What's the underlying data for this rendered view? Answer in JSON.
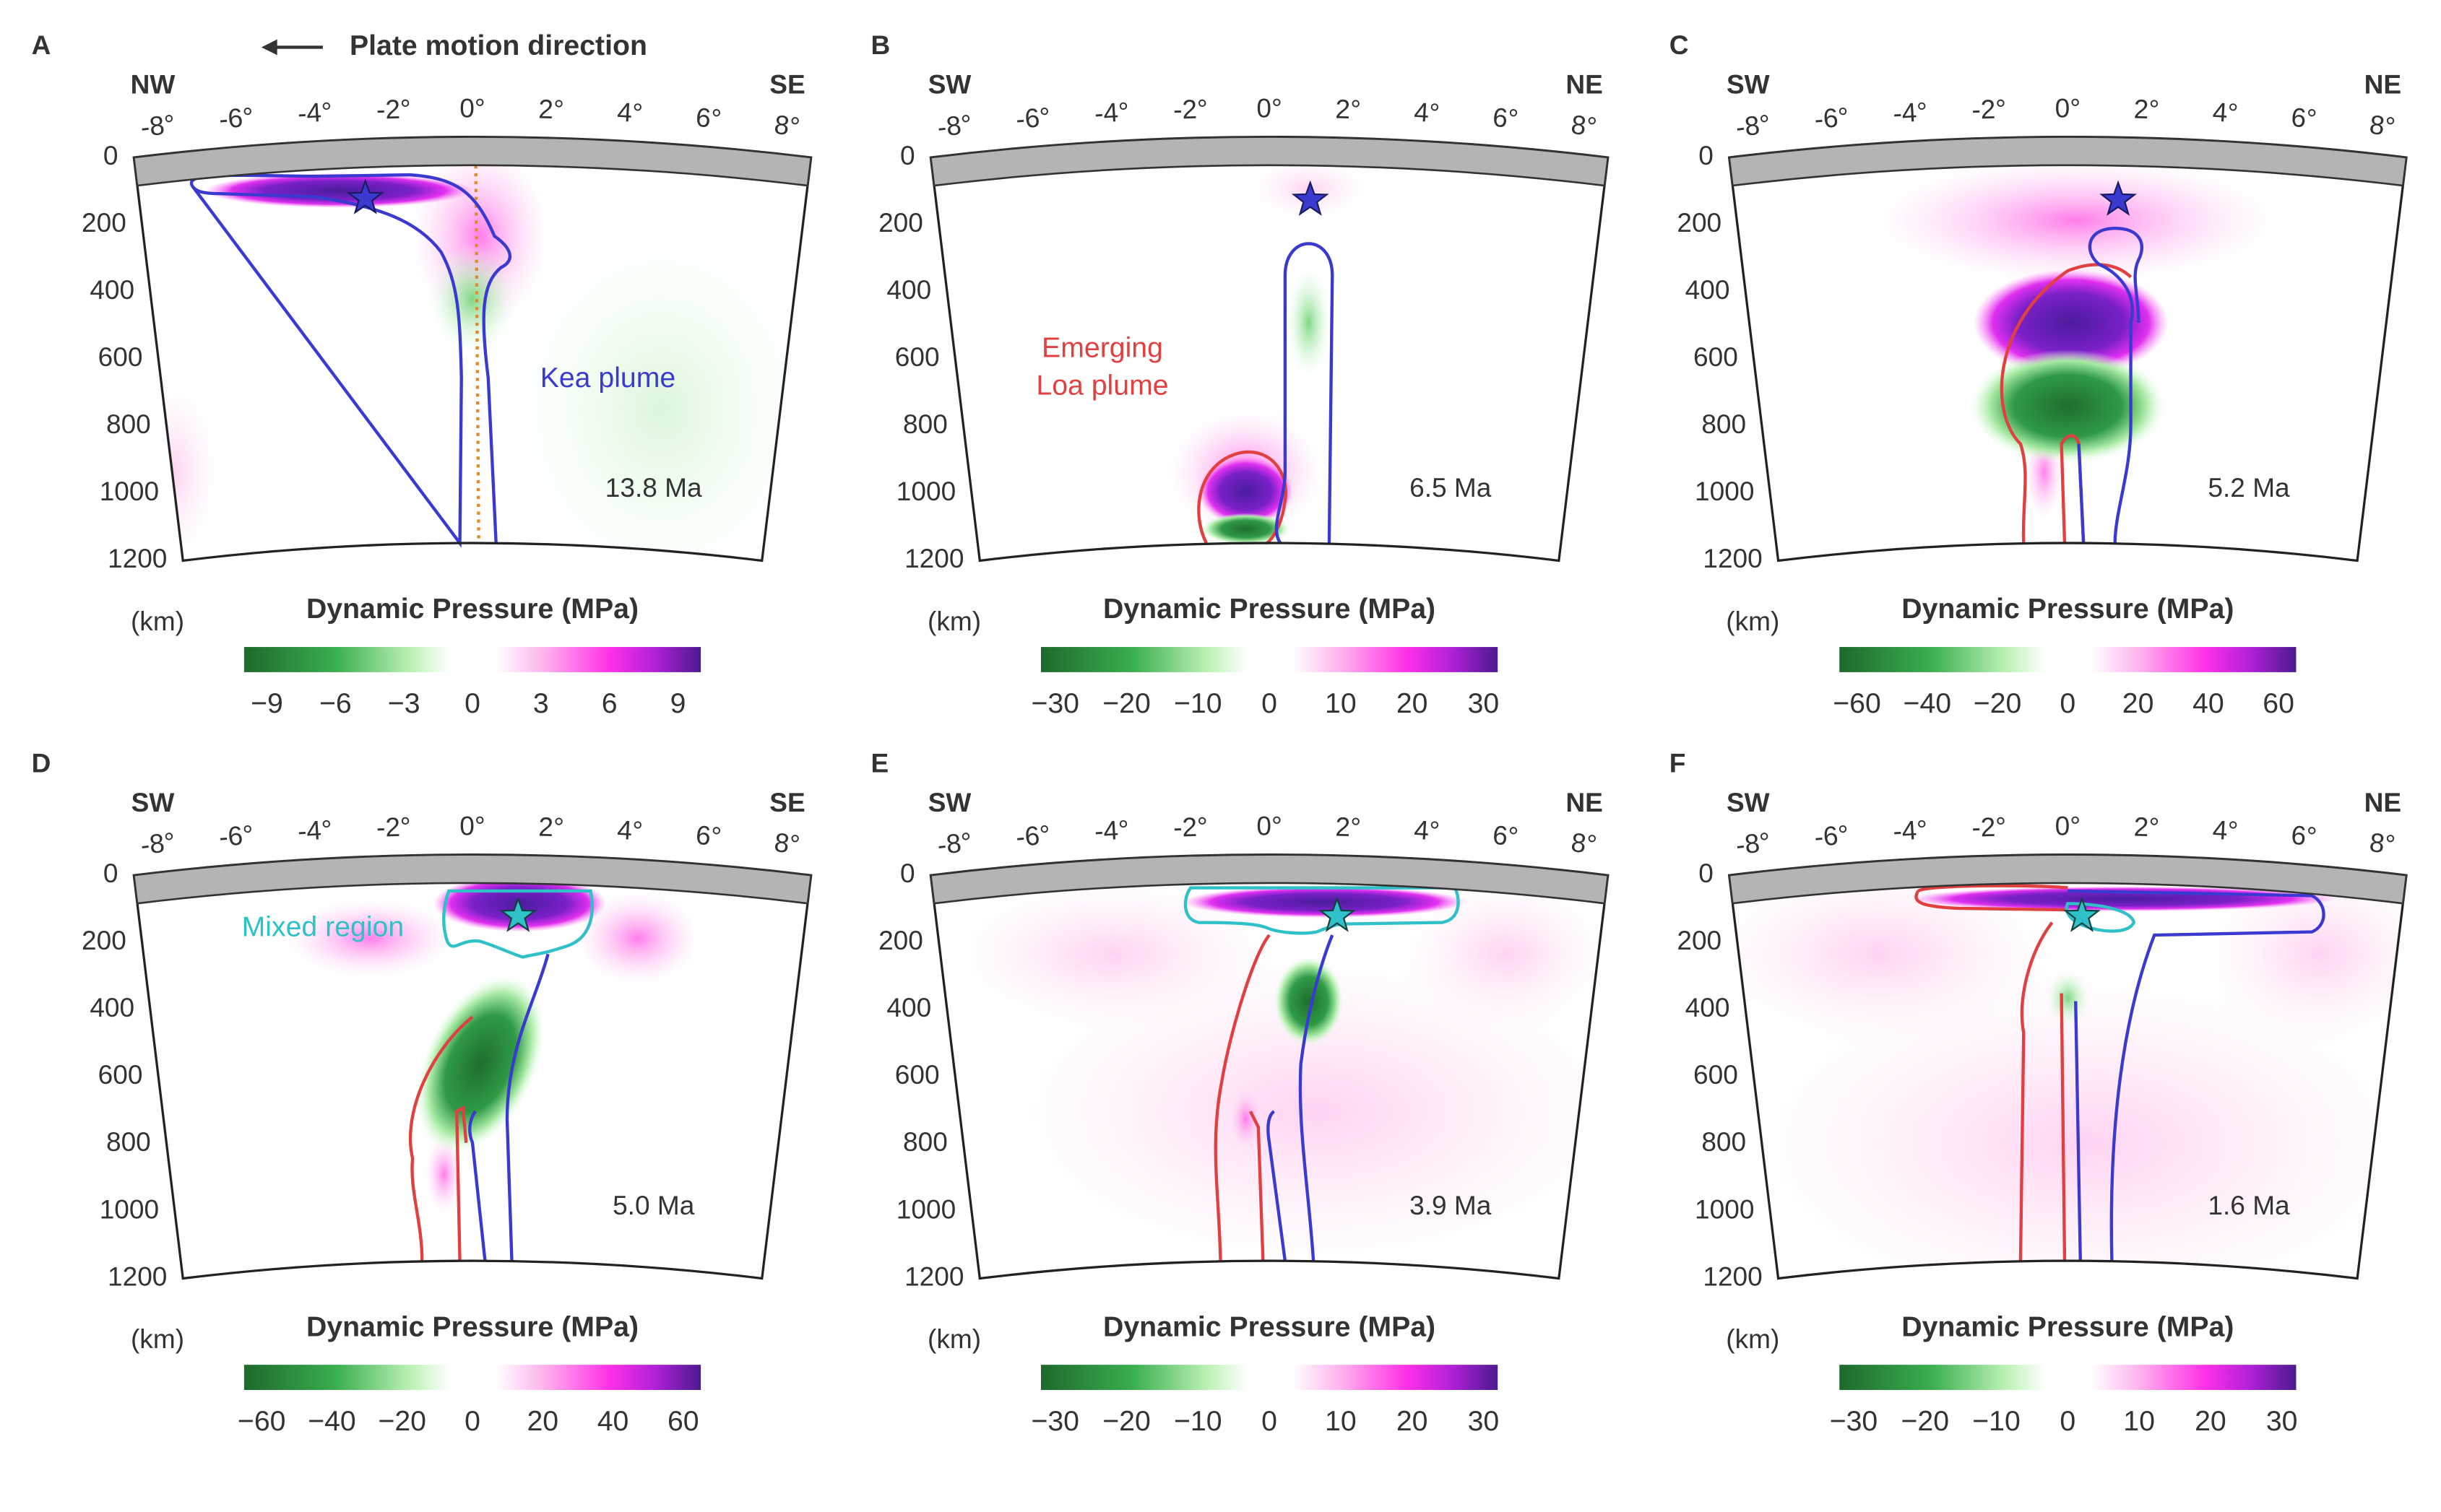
{
  "chart_data": [
    {
      "type": "cross-section",
      "label": "A",
      "dir_left": "NW",
      "dir_right": "SE",
      "time": "13.8 Ma",
      "notes": [
        "Plate motion direction",
        "Kea plume"
      ],
      "xlim": [
        -8.7,
        8.7
      ],
      "xticks": [
        {
          "value": -8,
          "label": "-8°"
        },
        {
          "value": -6,
          "label": "-6°"
        },
        {
          "value": -4,
          "label": "-4°"
        },
        {
          "value": -2,
          "label": "-2°"
        },
        {
          "value": 0,
          "label": "0°"
        },
        {
          "value": 2,
          "label": "2°"
        },
        {
          "value": 4,
          "label": "4°"
        },
        {
          "value": 6,
          "label": "6°"
        },
        {
          "value": 8,
          "label": "8°"
        }
      ],
      "ylim": [
        0,
        1200
      ],
      "yticks": [
        0,
        200,
        400,
        600,
        800,
        1000,
        1200
      ],
      "ylabel": "(km)",
      "colorbar": {
        "title": "Dynamic Pressure (MPa)",
        "lim": [
          -10,
          10
        ],
        "ticks": [
          {
            "value": -9,
            "label": "−9"
          },
          {
            "value": -6,
            "label": "−6"
          },
          {
            "value": -3,
            "label": "−3"
          },
          0,
          3,
          6,
          9
        ]
      }
    },
    {
      "type": "cross-section",
      "label": "B",
      "dir_left": "SW",
      "dir_right": "NE",
      "time": "6.5 Ma",
      "notes": [
        "Emerging",
        "Loa plume"
      ],
      "xlim": [
        -8.7,
        8.7
      ],
      "xticks": [
        {
          "value": -8,
          "label": "-8°"
        },
        {
          "value": -6,
          "label": "-6°"
        },
        {
          "value": -4,
          "label": "-4°"
        },
        {
          "value": -2,
          "label": "-2°"
        },
        {
          "value": 0,
          "label": "0°"
        },
        {
          "value": 2,
          "label": "2°"
        },
        {
          "value": 4,
          "label": "4°"
        },
        {
          "value": 6,
          "label": "6°"
        },
        {
          "value": 8,
          "label": "8°"
        }
      ],
      "ylim": [
        0,
        1200
      ],
      "yticks": [
        0,
        200,
        400,
        600,
        800,
        1000,
        1200
      ],
      "ylabel": "(km)",
      "colorbar": {
        "title": "Dynamic Pressure (MPa)",
        "lim": [
          -32,
          32
        ],
        "ticks": [
          {
            "value": -30,
            "label": "−30"
          },
          {
            "value": -20,
            "label": "−20"
          },
          {
            "value": -10,
            "label": "−10"
          },
          0,
          10,
          20,
          30
        ]
      }
    },
    {
      "type": "cross-section",
      "label": "C",
      "dir_left": "SW",
      "dir_right": "NE",
      "time": "5.2 Ma",
      "notes": [],
      "xlim": [
        -8.7,
        8.7
      ],
      "xticks": [
        {
          "value": -8,
          "label": "-8°"
        },
        {
          "value": -6,
          "label": "-6°"
        },
        {
          "value": -4,
          "label": "-4°"
        },
        {
          "value": -2,
          "label": "-2°"
        },
        {
          "value": 0,
          "label": "0°"
        },
        {
          "value": 2,
          "label": "2°"
        },
        {
          "value": 4,
          "label": "4°"
        },
        {
          "value": 6,
          "label": "6°"
        },
        {
          "value": 8,
          "label": "8°"
        }
      ],
      "ylim": [
        0,
        1200
      ],
      "yticks": [
        0,
        200,
        400,
        600,
        800,
        1000,
        1200
      ],
      "ylabel": "(km)",
      "colorbar": {
        "title": "Dynamic Pressure (MPa)",
        "lim": [
          -65,
          65
        ],
        "ticks": [
          {
            "value": -60,
            "label": "−60"
          },
          {
            "value": -40,
            "label": "−40"
          },
          {
            "value": -20,
            "label": "−20"
          },
          0,
          20,
          40,
          60
        ]
      }
    },
    {
      "type": "cross-section",
      "label": "D",
      "dir_left": "SW",
      "dir_right": "SE",
      "time": "5.0 Ma",
      "notes": [
        "Mixed region"
      ],
      "xlim": [
        -8.7,
        8.7
      ],
      "xticks": [
        {
          "value": -8,
          "label": "-8°"
        },
        {
          "value": -6,
          "label": "-6°"
        },
        {
          "value": -4,
          "label": "-4°"
        },
        {
          "value": -2,
          "label": "-2°"
        },
        {
          "value": 0,
          "label": "0°"
        },
        {
          "value": 2,
          "label": "2°"
        },
        {
          "value": 4,
          "label": "4°"
        },
        {
          "value": 6,
          "label": "6°"
        },
        {
          "value": 8,
          "label": "8°"
        }
      ],
      "ylim": [
        0,
        1200
      ],
      "yticks": [
        0,
        200,
        400,
        600,
        800,
        1000,
        1200
      ],
      "ylabel": "(km)",
      "colorbar": {
        "title": "Dynamic Pressure (MPa)",
        "lim": [
          -65,
          65
        ],
        "ticks": [
          {
            "value": -60,
            "label": "−60"
          },
          {
            "value": -40,
            "label": "−40"
          },
          {
            "value": -20,
            "label": "−20"
          },
          0,
          20,
          40,
          60
        ]
      }
    },
    {
      "type": "cross-section",
      "label": "E",
      "dir_left": "SW",
      "dir_right": "NE",
      "time": "3.9 Ma",
      "notes": [],
      "xlim": [
        -8.7,
        8.7
      ],
      "xticks": [
        {
          "value": -8,
          "label": "-8°"
        },
        {
          "value": -6,
          "label": "-6°"
        },
        {
          "value": -4,
          "label": "-4°"
        },
        {
          "value": -2,
          "label": "-2°"
        },
        {
          "value": 0,
          "label": "0°"
        },
        {
          "value": 2,
          "label": "2°"
        },
        {
          "value": 4,
          "label": "4°"
        },
        {
          "value": 6,
          "label": "6°"
        },
        {
          "value": 8,
          "label": "8°"
        }
      ],
      "ylim": [
        0,
        1200
      ],
      "yticks": [
        0,
        200,
        400,
        600,
        800,
        1000,
        1200
      ],
      "ylabel": "(km)",
      "colorbar": {
        "title": "Dynamic Pressure (MPa)",
        "lim": [
          -32,
          32
        ],
        "ticks": [
          {
            "value": -30,
            "label": "−30"
          },
          {
            "value": -20,
            "label": "−20"
          },
          {
            "value": -10,
            "label": "−10"
          },
          0,
          10,
          20,
          30
        ]
      }
    },
    {
      "type": "cross-section",
      "label": "F",
      "dir_left": "SW",
      "dir_right": "NE",
      "time": "1.6 Ma",
      "notes": [],
      "xlim": [
        -8.7,
        8.7
      ],
      "xticks": [
        {
          "value": -8,
          "label": "-8°"
        },
        {
          "value": -6,
          "label": "-6°"
        },
        {
          "value": -4,
          "label": "-4°"
        },
        {
          "value": -2,
          "label": "-2°"
        },
        {
          "value": 0,
          "label": "0°"
        },
        {
          "value": 2,
          "label": "2°"
        },
        {
          "value": 4,
          "label": "4°"
        },
        {
          "value": 6,
          "label": "6°"
        },
        {
          "value": 8,
          "label": "8°"
        }
      ],
      "ylim": [
        0,
        1200
      ],
      "yticks": [
        0,
        200,
        400,
        600,
        800,
        1000,
        1200
      ],
      "ylabel": "(km)",
      "colorbar": {
        "title": "Dynamic Pressure (MPa)",
        "lim": [
          -32,
          32
        ],
        "ticks": [
          {
            "value": -30,
            "label": "−30"
          },
          {
            "value": -20,
            "label": "−20"
          },
          {
            "value": -10,
            "label": "−10"
          },
          0,
          10,
          20,
          30
        ]
      }
    }
  ]
}
